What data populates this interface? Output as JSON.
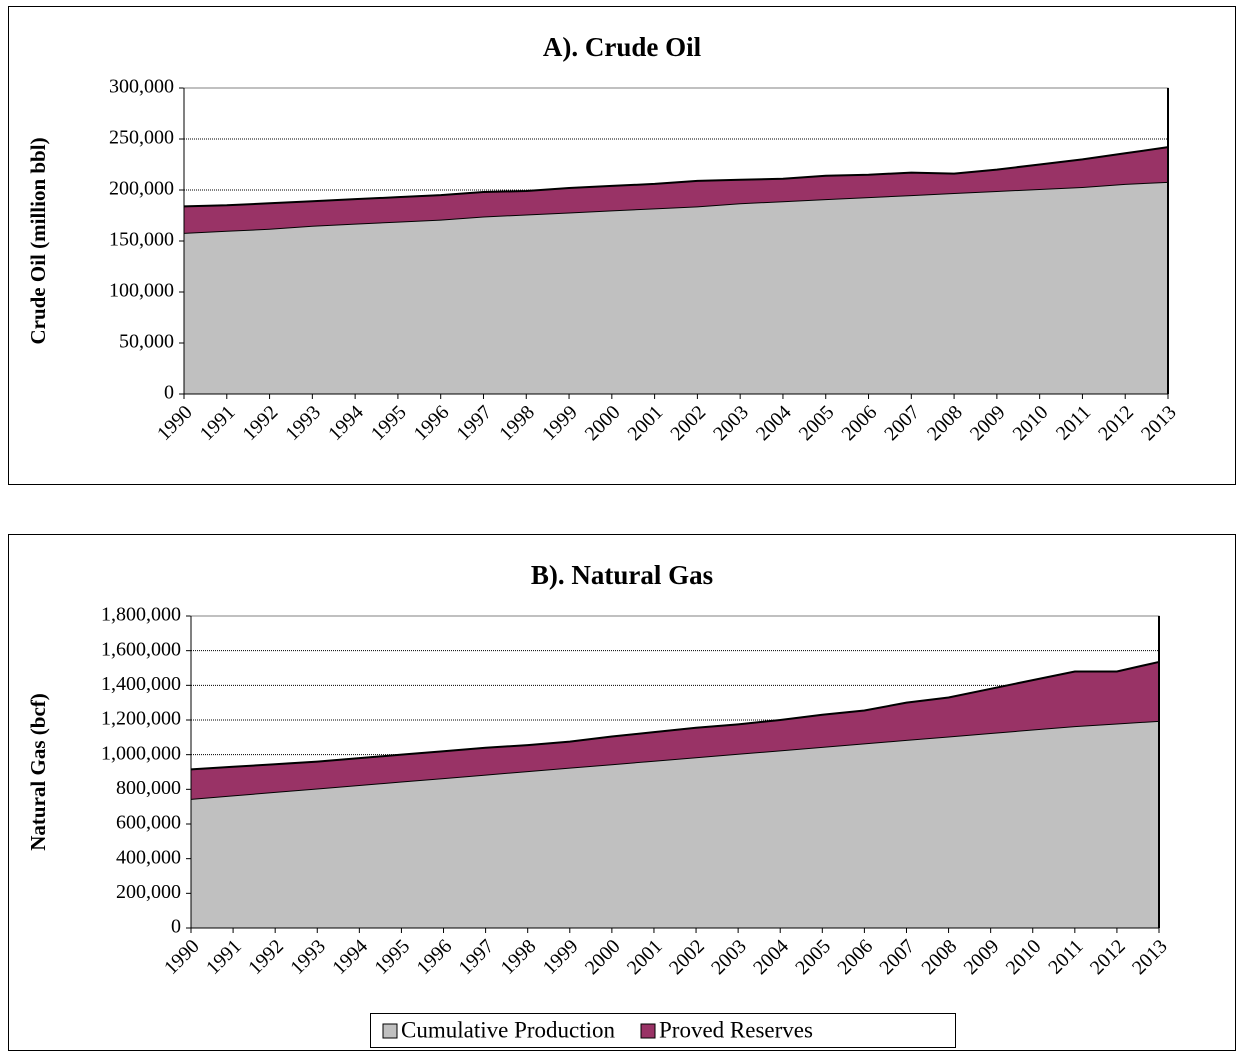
{
  "chart_data": [
    {
      "type": "area",
      "stacked": true,
      "title": "A). Crude Oil",
      "y_label": "Crude Oil (million bbl)",
      "legend": false,
      "grid": true,
      "categories": [
        "1990",
        "1991",
        "1992",
        "1993",
        "1994",
        "1995",
        "1996",
        "1997",
        "1998",
        "1999",
        "2000",
        "2001",
        "2002",
        "2003",
        "2004",
        "2005",
        "2006",
        "2007",
        "2008",
        "2009",
        "2010",
        "2011",
        "2012",
        "2013"
      ],
      "series": [
        {
          "name": "Cumulative Production",
          "color": "#c0c0c0",
          "values": [
            158000,
            160000,
            162000,
            165000,
            167000,
            169000,
            171000,
            174000,
            176000,
            178000,
            180000,
            182000,
            184000,
            187000,
            189000,
            191000,
            193000,
            195000,
            197000,
            199000,
            201000,
            203000,
            206000,
            208000
          ]
        },
        {
          "name": "Proved Reserves",
          "color": "#993366",
          "values": [
            26000,
            25000,
            25000,
            24000,
            24000,
            24000,
            24000,
            24000,
            23000,
            24000,
            24000,
            24000,
            25000,
            23000,
            22000,
            23000,
            22000,
            22000,
            19000,
            21000,
            24000,
            27000,
            30000,
            34000
          ]
        }
      ],
      "ylim": [
        0,
        300000
      ],
      "yticks": [
        0,
        {
          "value": 50000,
          "label": "50,000"
        },
        {
          "value": 100000,
          "label": "100,000"
        },
        {
          "value": 150000,
          "label": "150,000"
        },
        {
          "value": 200000,
          "label": "200,000"
        },
        {
          "value": 250000,
          "label": "250,000"
        },
        {
          "value": 300000,
          "label": "300,000"
        }
      ]
    },
    {
      "type": "area",
      "stacked": true,
      "title": "B). Natural Gas",
      "y_label": "Natural Gas (bcf)",
      "legend": "bottom",
      "grid": true,
      "categories": [
        "1990",
        "1991",
        "1992",
        "1993",
        "1994",
        "1995",
        "1996",
        "1997",
        "1998",
        "1999",
        "2000",
        "2001",
        "2002",
        "2003",
        "2004",
        "2005",
        "2006",
        "2007",
        "2008",
        "2009",
        "2010",
        "2011",
        "2012",
        "2013"
      ],
      "series": [
        {
          "name": "Cumulative Production",
          "color": "#c0c0c0",
          "values": [
            745000,
            765000,
            785000,
            805000,
            825000,
            845000,
            865000,
            885000,
            905000,
            925000,
            945000,
            965000,
            985000,
            1005000,
            1025000,
            1045000,
            1065000,
            1085000,
            1105000,
            1125000,
            1145000,
            1165000,
            1180000,
            1195000
          ]
        },
        {
          "name": "Proved Reserves",
          "color": "#993366",
          "values": [
            170000,
            165000,
            160000,
            155000,
            155000,
            155000,
            155000,
            155000,
            150000,
            150000,
            160000,
            165000,
            170000,
            170000,
            175000,
            185000,
            190000,
            215000,
            225000,
            255000,
            285000,
            315000,
            300000,
            340000
          ]
        }
      ],
      "ylim": [
        0,
        1800000
      ],
      "yticks": [
        0,
        {
          "value": 200000,
          "label": "200,000"
        },
        {
          "value": 400000,
          "label": "400,000"
        },
        {
          "value": 600000,
          "label": "600,000"
        },
        {
          "value": 800000,
          "label": "800,000"
        },
        {
          "value": 1000000,
          "label": "1,000,000"
        },
        {
          "value": 1200000,
          "label": "1,200,000"
        },
        {
          "value": 1400000,
          "label": "1,400,000"
        },
        {
          "value": 1600000,
          "label": "1,600,000"
        },
        {
          "value": 1800000,
          "label": "1,800,000"
        }
      ]
    }
  ]
}
